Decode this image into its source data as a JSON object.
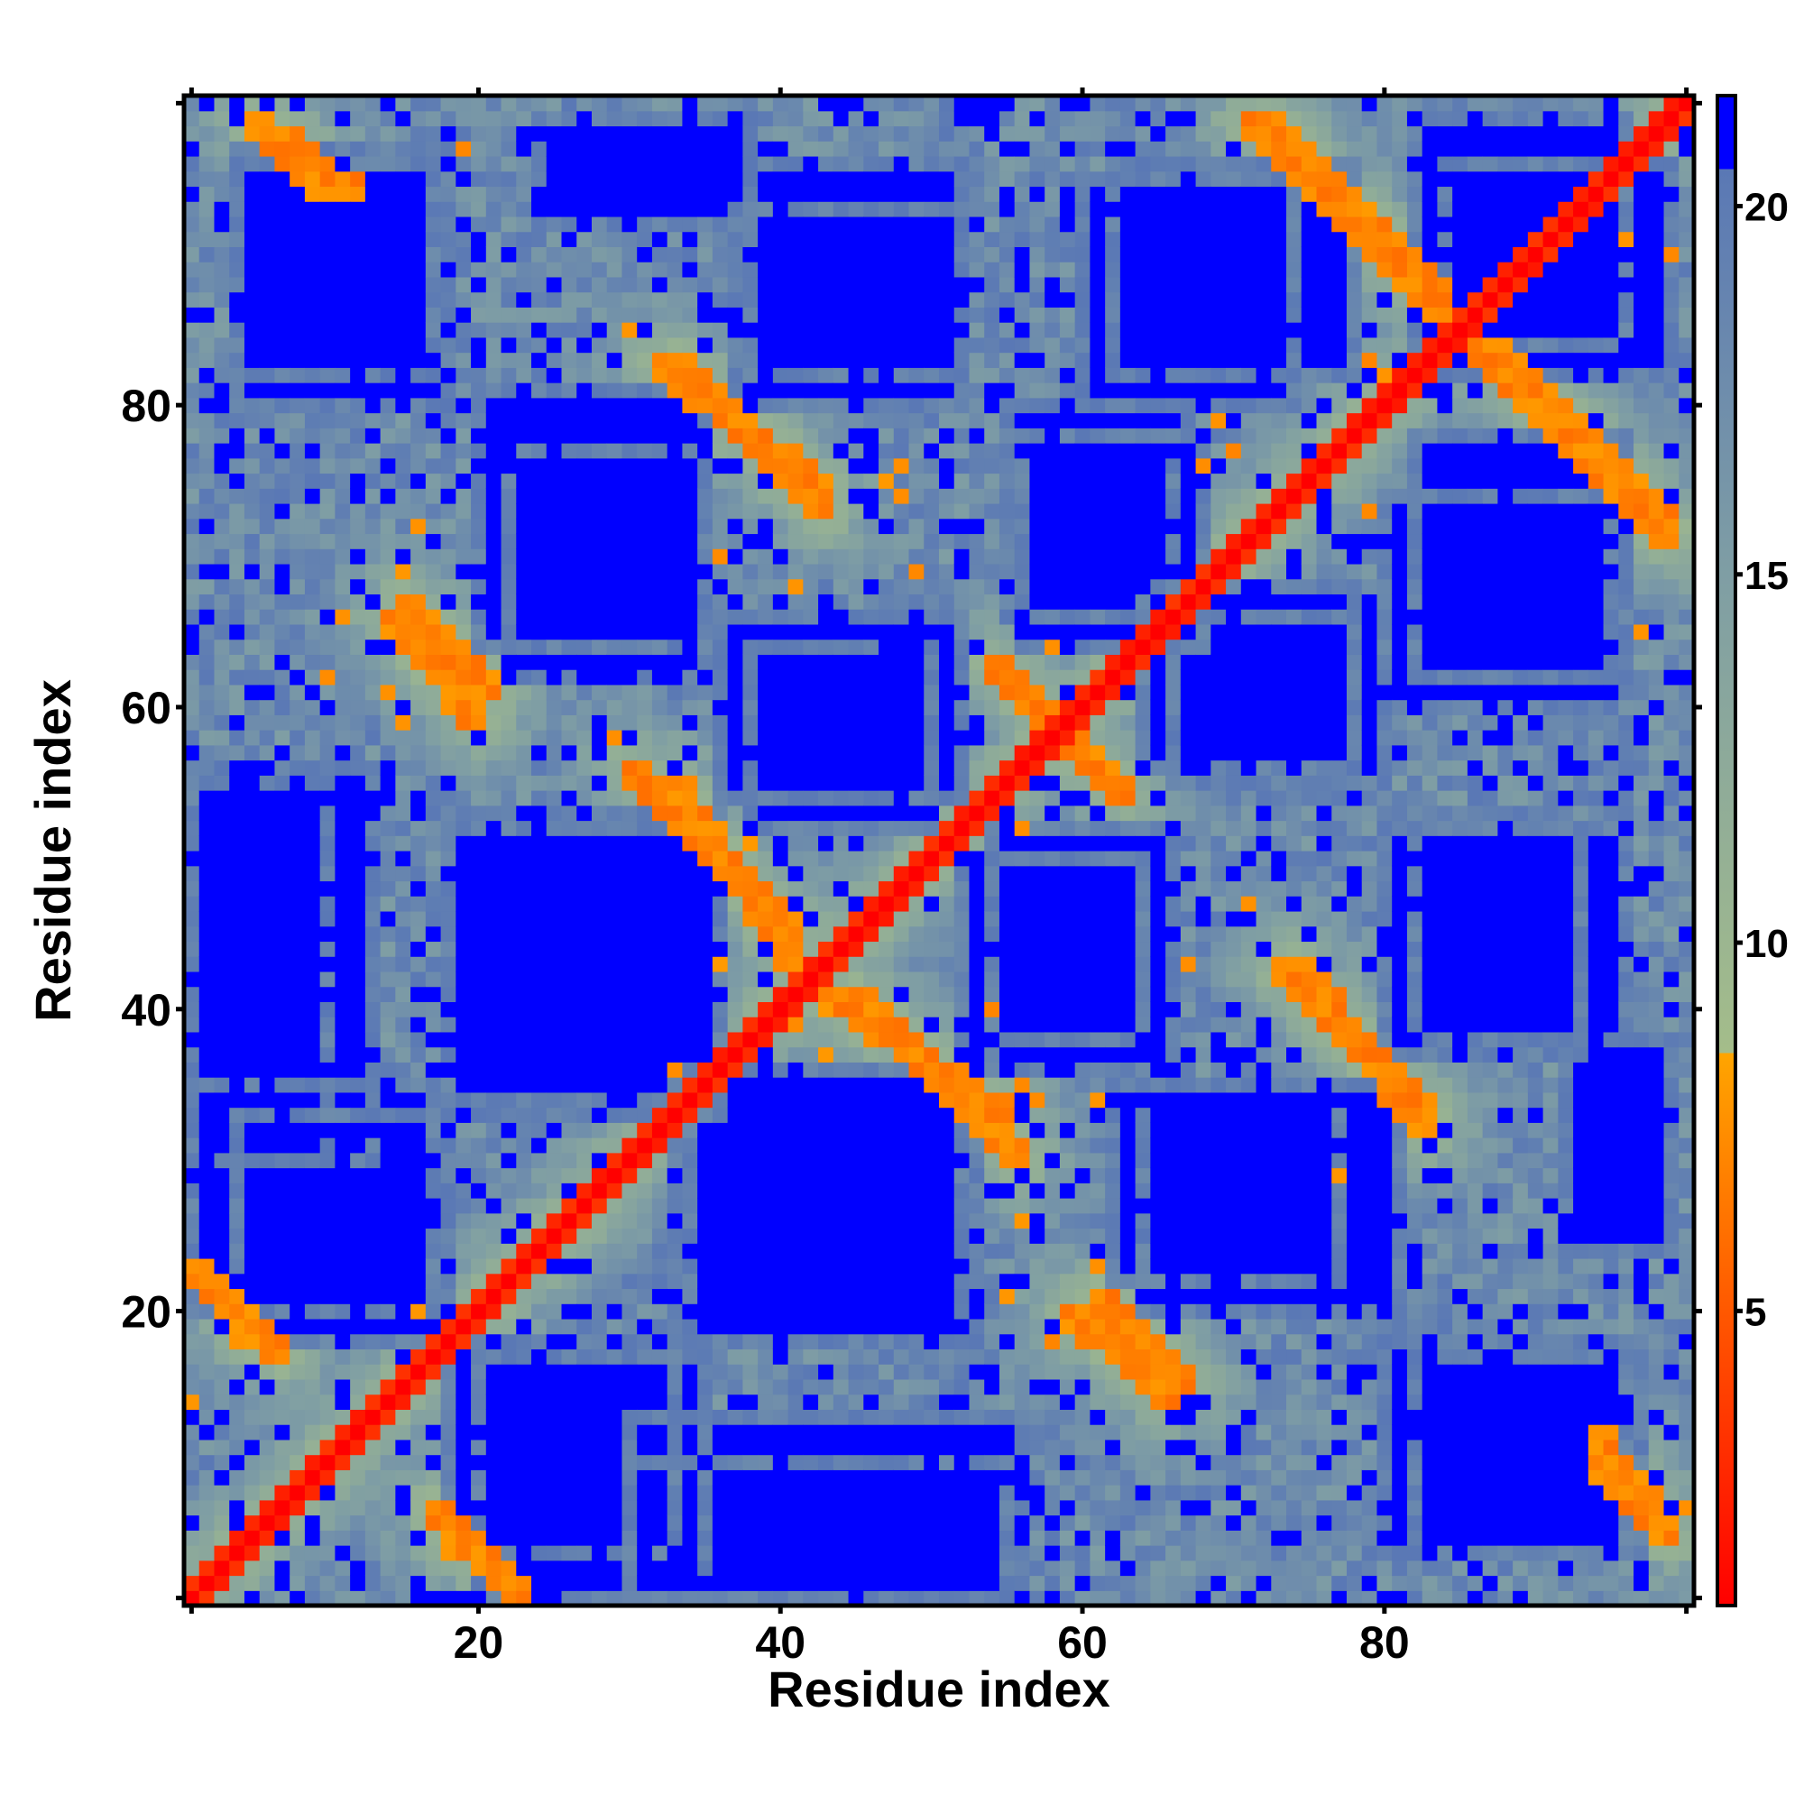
{
  "chart_data": {
    "type": "heatmap",
    "title": "",
    "xlabel": "Residue index",
    "ylabel": "Residue index",
    "xlim": [
      1,
      100
    ],
    "ylim": [
      1,
      100
    ],
    "x_ticks": [
      20,
      40,
      60,
      80
    ],
    "y_ticks": [
      20,
      40,
      60,
      80
    ],
    "colorbar": {
      "ticks": [
        5,
        10,
        15,
        20
      ],
      "range": [
        1,
        21.5
      ],
      "colors": [
        {
          "value": 1,
          "color": "#ff0000"
        },
        {
          "value": 8.5,
          "color": "#ffa500"
        },
        {
          "value": 8.5,
          "color": "#a4bd8a"
        },
        {
          "value": 15,
          "color": "#7f9ea4"
        },
        {
          "value": 20.5,
          "color": "#5a78b5"
        },
        {
          "value": 20.5,
          "color": "#0000ff"
        }
      ]
    },
    "matrix_size": 100,
    "symmetric": true,
    "diagonal_value": 1,
    "far_value": 21.5,
    "strong_bands": [
      {
        "from": [
          1,
          1
        ],
        "to": [
          99,
          99
        ],
        "value": 2
      },
      {
        "from": [
          43,
          41
        ],
        "to": [
          55,
          33
        ],
        "value": 6
      },
      {
        "from": [
          32,
          83
        ],
        "to": [
          43,
          73
        ],
        "value": 6
      },
      {
        "from": [
          72,
          99
        ],
        "to": [
          84,
          87
        ],
        "value": 6
      },
      {
        "from": [
          14,
          66
        ],
        "to": [
          20,
          59
        ],
        "value": 6
      },
      {
        "from": [
          30,
          56
        ],
        "to": [
          41,
          45
        ],
        "value": 6
      },
      {
        "from": [
          61,
          21
        ],
        "to": [
          67,
          15
        ],
        "value": 6
      },
      {
        "from": [
          74,
          43
        ],
        "to": [
          83,
          33
        ],
        "value": 6
      },
      {
        "from": [
          86,
          84
        ],
        "to": [
          99,
          71
        ],
        "value": 6
      },
      {
        "from": [
          7,
          98
        ],
        "to": [
          12,
          94
        ],
        "value": 6
      },
      {
        "from": [
          1,
          23
        ],
        "to": [
          5,
          18
        ],
        "value": 6
      },
      {
        "from": [
          17,
          7
        ],
        "to": [
          22,
          2
        ],
        "value": 6
      },
      {
        "from": [
          94,
          10
        ],
        "to": [
          99,
          5
        ],
        "value": 6
      },
      {
        "from": [
          54,
          63
        ],
        "to": [
          63,
          54
        ],
        "value": 6
      }
    ],
    "blue_blocks": [
      {
        "x": [
          4,
          17
        ],
        "y": [
          82,
          96
        ]
      },
      {
        "x": [
          20,
          35
        ],
        "y": [
          64,
          81
        ]
      },
      {
        "x": [
          38,
          52
        ],
        "y": [
          82,
          96
        ]
      },
      {
        "x": [
          62,
          78
        ],
        "y": [
          82,
          96
        ]
      },
      {
        "x": [
          84,
          99
        ],
        "y": [
          82,
          96
        ]
      },
      {
        "x": [
          1,
          13
        ],
        "y": [
          30,
          56
        ]
      },
      {
        "x": [
          18,
          36
        ],
        "y": [
          33,
          53
        ]
      },
      {
        "x": [
          4,
          18
        ],
        "y": [
          18,
          33
        ]
      },
      {
        "x": [
          36,
          52
        ],
        "y": [
          54,
          66
        ]
      },
      {
        "x": [
          55,
          66
        ],
        "y": [
          66,
          80
        ]
      },
      {
        "x": [
          64,
          78
        ],
        "y": [
          56,
          68
        ]
      },
      {
        "x": [
          80,
          95
        ],
        "y": [
          60,
          74
        ]
      },
      {
        "x": [
          80,
          93
        ],
        "y": [
          37,
          52
        ]
      },
      {
        "x": [
          52,
          64
        ],
        "y": [
          38,
          50
        ]
      },
      {
        "x": [
          34,
          52
        ],
        "y": [
          18,
          36
        ]
      },
      {
        "x": [
          62,
          77
        ],
        "y": [
          22,
          35
        ]
      },
      {
        "x": [
          92,
          99
        ],
        "y": [
          24,
          38
        ]
      },
      {
        "x": [
          20,
          35
        ],
        "y": [
          1,
          17
        ]
      },
      {
        "x": [
          80,
          97
        ],
        "y": [
          4,
          18
        ]
      },
      {
        "x": [
          30,
          55
        ],
        "y": [
          1,
          10
        ]
      }
    ],
    "noise_density": 0.14
  }
}
